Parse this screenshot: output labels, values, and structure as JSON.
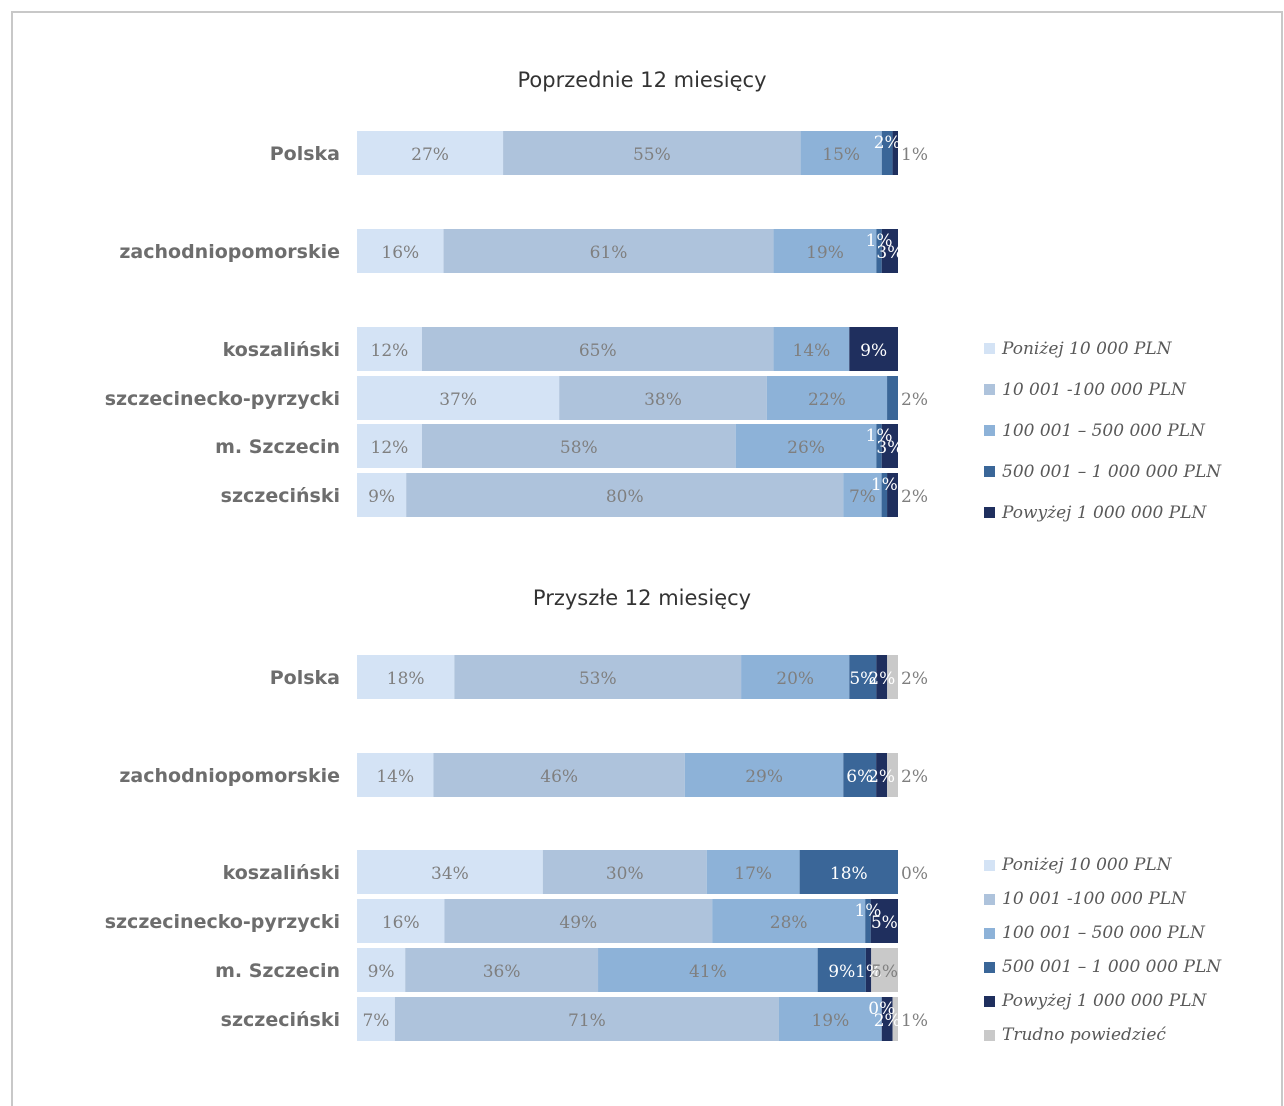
{
  "colors": [
    "#d4e3f5",
    "#aec3dc",
    "#8db2d8",
    "#3a6698",
    "#1f2f5e",
    "#c9c9c9"
  ],
  "chart_data": [
    {
      "type": "bar",
      "orientation": "horizontal-stacked-100",
      "title": "Poprzednie 12 miesięcy",
      "categories": [
        "Polska",
        "zachodniopomorskie",
        "koszaliński",
        "szczecinecko-pyrzycki",
        "m. Szczecin",
        "szczeciński"
      ],
      "series": [
        {
          "name": "Poniżej 10 000 PLN",
          "values": [
            27,
            16,
            12,
            37,
            12,
            9
          ]
        },
        {
          "name": "10 001 -100 000 PLN",
          "values": [
            55,
            61,
            65,
            38,
            58,
            80
          ]
        },
        {
          "name": "100 001 – 500 000 PLN",
          "values": [
            15,
            19,
            14,
            22,
            26,
            7
          ]
        },
        {
          "name": "500 001 – 1 000 000 PLN",
          "values": [
            2,
            1,
            0,
            2,
            1,
            1
          ]
        },
        {
          "name": "Powyżej 1 000 000 PLN",
          "values": [
            1,
            3,
            9,
            0,
            3,
            2
          ]
        }
      ],
      "labels": [
        [
          "27%",
          "55%",
          "15%",
          "2%",
          "1%"
        ],
        [
          "16%",
          "61%",
          "19%",
          "1%",
          "3%"
        ],
        [
          "12%",
          "65%",
          "14%",
          "",
          "9%"
        ],
        [
          "37%",
          "38%",
          "22%",
          "2%",
          ""
        ],
        [
          "12%",
          "58%",
          "26%",
          "1%",
          "3%"
        ],
        [
          "9%",
          "80%",
          "7%",
          "1%",
          "2%"
        ]
      ],
      "legend": {
        "placement": "right"
      }
    },
    {
      "type": "bar",
      "orientation": "horizontal-stacked-100",
      "title": "Przyszłe 12 miesięcy",
      "categories": [
        "Polska",
        "zachodniopomorskie",
        "koszaliński",
        "szczecinecko-pyrzycki",
        "m. Szczecin",
        "szczeciński"
      ],
      "series": [
        {
          "name": "Poniżej 10 000 PLN",
          "values": [
            18,
            14,
            34,
            16,
            9,
            7
          ]
        },
        {
          "name": "10 001 -100 000 PLN",
          "values": [
            53,
            46,
            30,
            49,
            36,
            71
          ]
        },
        {
          "name": "100 001 – 500 000 PLN",
          "values": [
            20,
            29,
            17,
            28,
            41,
            19
          ]
        },
        {
          "name": "500 001 – 1 000 000 PLN",
          "values": [
            5,
            6,
            18,
            1,
            9,
            0
          ]
        },
        {
          "name": "Powyżej 1 000 000 PLN",
          "values": [
            2,
            2,
            0,
            5,
            1,
            2
          ]
        },
        {
          "name": "Trudno powiedzieć",
          "values": [
            2,
            2,
            0,
            0,
            5,
            1
          ]
        }
      ],
      "labels": [
        [
          "18%",
          "53%",
          "20%",
          "5%",
          "2%",
          "2%"
        ],
        [
          "14%",
          "46%",
          "29%",
          "6%",
          "2%",
          "2%"
        ],
        [
          "34%",
          "30%",
          "17%",
          "18%",
          "0%",
          ""
        ],
        [
          "16%",
          "49%",
          "28%",
          "1%",
          "5%",
          ""
        ],
        [
          "9%",
          "36%",
          "41%",
          "9%",
          "1%",
          "5%"
        ],
        [
          "7%",
          "71%",
          "19%",
          "0%",
          "2%",
          "1%"
        ]
      ],
      "legend": {
        "placement": "right"
      }
    }
  ]
}
